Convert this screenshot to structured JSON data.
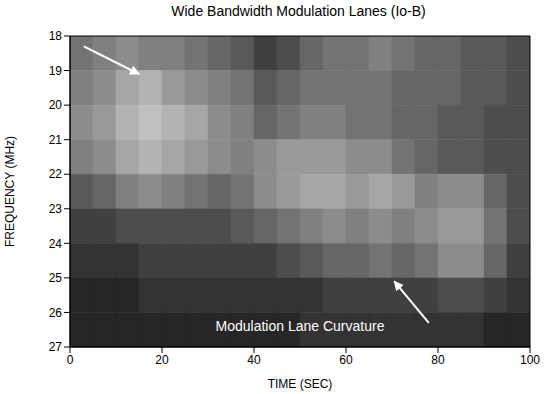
{
  "chart_data": {
    "type": "heatmap",
    "title": "Wide Bandwidth Modulation Lanes (Io-B)",
    "x_label": "TIME (SEC)",
    "y_label": "FREQUENCY (MHz)",
    "xlim": [
      0,
      100
    ],
    "xticks": [
      0,
      20,
      40,
      60,
      80,
      100
    ],
    "ylim": [
      27,
      18
    ],
    "yticks": [
      18,
      19,
      20,
      21,
      22,
      23,
      24,
      25,
      26,
      27
    ],
    "zlim": [
      0,
      100
    ],
    "cell_x": [
      0,
      5,
      10,
      15,
      20,
      25,
      30,
      35,
      40,
      45,
      50,
      55,
      60,
      65,
      70,
      75,
      80,
      85,
      90,
      95,
      100
    ],
    "cell_y": [
      18,
      19,
      20,
      21,
      22,
      23,
      24,
      25,
      26,
      27
    ],
    "cells": [
      [
        45,
        50,
        55,
        50,
        50,
        45,
        40,
        35,
        25,
        30,
        40,
        45,
        45,
        50,
        45,
        40,
        40,
        35,
        35,
        30
      ],
      [
        50,
        55,
        65,
        70,
        60,
        55,
        50,
        45,
        35,
        40,
        45,
        45,
        45,
        45,
        40,
        40,
        40,
        35,
        35,
        30
      ],
      [
        55,
        60,
        70,
        75,
        70,
        65,
        55,
        50,
        40,
        45,
        50,
        50,
        45,
        45,
        40,
        40,
        35,
        35,
        30,
        30
      ],
      [
        50,
        55,
        65,
        70,
        65,
        60,
        55,
        50,
        55,
        60,
        60,
        60,
        55,
        55,
        45,
        40,
        35,
        35,
        30,
        30
      ],
      [
        35,
        40,
        50,
        55,
        50,
        45,
        40,
        45,
        55,
        60,
        65,
        65,
        60,
        65,
        60,
        50,
        55,
        55,
        40,
        30
      ],
      [
        25,
        25,
        30,
        30,
        30,
        30,
        30,
        35,
        40,
        45,
        50,
        55,
        50,
        55,
        50,
        55,
        60,
        60,
        45,
        30
      ],
      [
        20,
        20,
        20,
        25,
        25,
        25,
        25,
        25,
        25,
        30,
        35,
        40,
        40,
        45,
        40,
        45,
        55,
        55,
        40,
        25
      ],
      [
        15,
        15,
        15,
        20,
        20,
        20,
        20,
        20,
        20,
        20,
        20,
        25,
        25,
        25,
        25,
        25,
        30,
        30,
        25,
        20
      ],
      [
        15,
        15,
        15,
        15,
        15,
        15,
        15,
        15,
        15,
        15,
        20,
        20,
        20,
        20,
        20,
        20,
        20,
        20,
        15,
        15
      ]
    ],
    "annotations": [
      {
        "text": "Modulation Lane Curvature",
        "x": 50,
        "y": 26.4
      }
    ],
    "arrows": [
      {
        "x": 3,
        "y": 18.3,
        "x2": 15,
        "y2": 19.1
      },
      {
        "x": 78,
        "y": 26.3,
        "x2": 70.5,
        "y2": 25.1
      }
    ]
  }
}
